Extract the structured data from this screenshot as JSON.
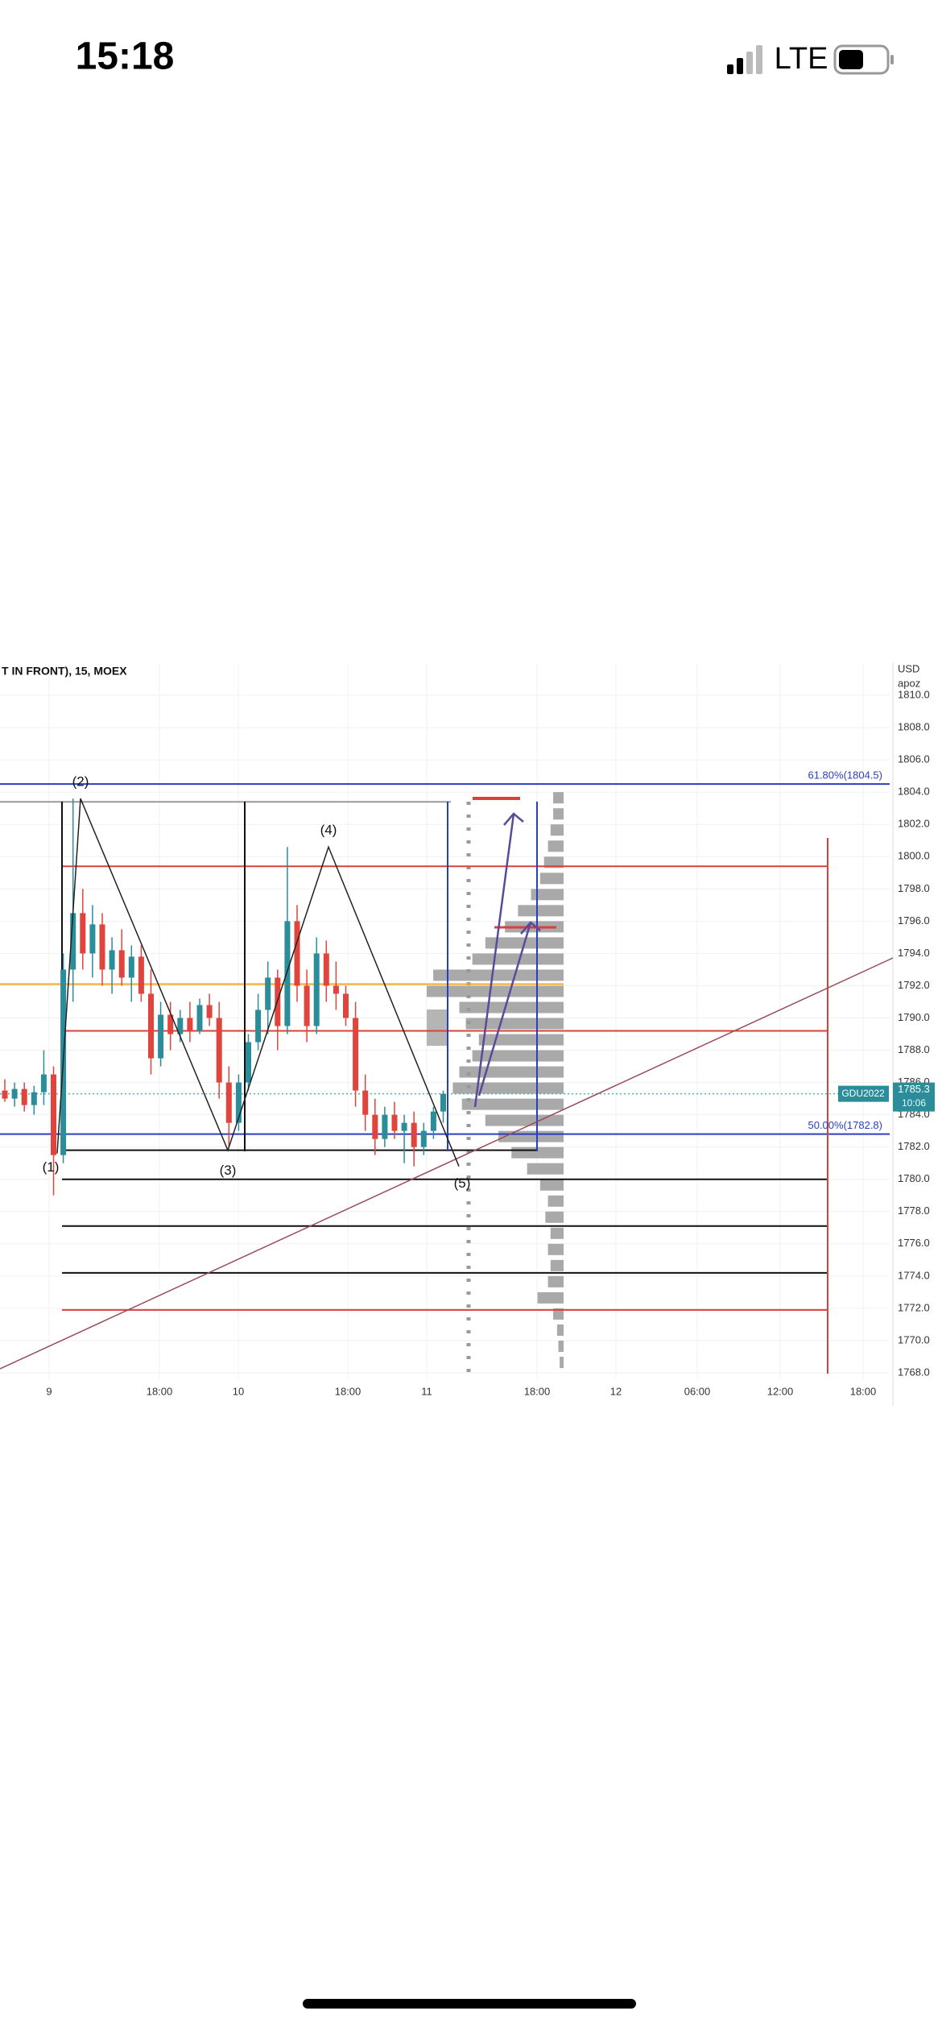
{
  "status_bar": {
    "time": "15:18",
    "network": "LTE"
  },
  "chart_data": {
    "type": "candlestick",
    "title": "T IN FRONT), 15, MOEX",
    "currency": "USD",
    "unit": "apoz",
    "x_labels": [
      "9",
      "18:00",
      "10",
      "18:00",
      "11",
      "18:00",
      "12",
      "06:00",
      "12:00",
      "18:00"
    ],
    "ylim": [
      1767.6,
      1812.0
    ],
    "yticks": [
      {
        "value": 1768,
        "label": "1768.0"
      },
      {
        "value": 1770,
        "label": "1770.0"
      },
      {
        "value": 1772,
        "label": "1772.0"
      },
      {
        "value": 1774,
        "label": "1774.0"
      },
      {
        "value": 1776,
        "label": "1776.0"
      },
      {
        "value": 1778,
        "label": "1778.0"
      },
      {
        "value": 1780,
        "label": "1780.0"
      },
      {
        "value": 1782,
        "label": "1782.0"
      },
      {
        "value": 1784,
        "label": "1784.0"
      },
      {
        "value": 1786,
        "label": "1786.0"
      },
      {
        "value": 1788,
        "label": "1788.0"
      },
      {
        "value": 1790,
        "label": "1790.0"
      },
      {
        "value": 1792,
        "label": "1792.0"
      },
      {
        "value": 1794,
        "label": "1794.0"
      },
      {
        "value": 1796,
        "label": "1796.0"
      },
      {
        "value": 1798,
        "label": "1798.0"
      },
      {
        "value": 1800,
        "label": "1800.0"
      },
      {
        "value": 1802,
        "label": "1802.0"
      },
      {
        "value": 1804,
        "label": "1804.0"
      },
      {
        "value": 1806,
        "label": "1806.0"
      },
      {
        "value": 1808,
        "label": "1808.0"
      },
      {
        "value": 1810,
        "label": "1810.0"
      }
    ],
    "grid": true,
    "up_color": "#2b8c9a",
    "down_color": "#e0443c",
    "ohlc": [
      [
        1785.5,
        1786.2,
        1784.8,
        1785.0
      ],
      [
        1785.0,
        1786.0,
        1784.5,
        1785.6
      ],
      [
        1785.6,
        1786.0,
        1784.2,
        1784.6
      ],
      [
        1784.6,
        1785.8,
        1784.0,
        1785.4
      ],
      [
        1785.4,
        1788.0,
        1784.6,
        1786.5
      ],
      [
        1786.5,
        1787.0,
        1779.0,
        1781.5
      ],
      [
        1781.5,
        1794.0,
        1781.0,
        1793.0
      ],
      [
        1793.0,
        1803.6,
        1791.0,
        1796.5
      ],
      [
        1796.5,
        1798.0,
        1793.0,
        1794.0
      ],
      [
        1794.0,
        1797.0,
        1792.5,
        1795.8
      ],
      [
        1795.8,
        1796.5,
        1792.0,
        1793.0
      ],
      [
        1793.0,
        1795.0,
        1791.5,
        1794.2
      ],
      [
        1794.2,
        1795.5,
        1792.0,
        1792.5
      ],
      [
        1792.5,
        1794.5,
        1791.0,
        1793.8
      ],
      [
        1793.8,
        1794.5,
        1791.0,
        1791.5
      ],
      [
        1791.5,
        1793.0,
        1786.5,
        1787.5
      ],
      [
        1787.5,
        1791.0,
        1787.0,
        1790.2
      ],
      [
        1790.2,
        1791.0,
        1788.0,
        1789.0
      ],
      [
        1789.0,
        1790.5,
        1788.5,
        1790.0
      ],
      [
        1790.0,
        1791.0,
        1788.5,
        1789.2
      ],
      [
        1789.2,
        1791.2,
        1789.0,
        1790.8
      ],
      [
        1790.8,
        1791.5,
        1789.5,
        1790.0
      ],
      [
        1790.0,
        1791.0,
        1785.0,
        1786.0
      ],
      [
        1786.0,
        1787.0,
        1782.0,
        1783.5
      ],
      [
        1783.5,
        1786.5,
        1783.0,
        1786.0
      ],
      [
        1786.0,
        1789.0,
        1785.5,
        1788.5
      ],
      [
        1788.5,
        1791.5,
        1788.0,
        1790.5
      ],
      [
        1790.5,
        1793.5,
        1789.0,
        1792.5
      ],
      [
        1792.5,
        1793.0,
        1788.0,
        1789.5
      ],
      [
        1789.5,
        1800.6,
        1789.0,
        1796.0
      ],
      [
        1796.0,
        1797.0,
        1791.0,
        1792.0
      ],
      [
        1792.0,
        1793.0,
        1788.5,
        1789.5
      ],
      [
        1789.5,
        1795.0,
        1789.0,
        1794.0
      ],
      [
        1794.0,
        1794.8,
        1791.0,
        1792.0
      ],
      [
        1792.0,
        1793.5,
        1790.5,
        1791.5
      ],
      [
        1791.5,
        1792.0,
        1789.5,
        1790.0
      ],
      [
        1790.0,
        1791.0,
        1784.5,
        1785.5
      ],
      [
        1785.5,
        1786.5,
        1783.0,
        1784.0
      ],
      [
        1784.0,
        1785.0,
        1781.5,
        1782.5
      ],
      [
        1782.5,
        1784.5,
        1782.0,
        1784.0
      ],
      [
        1784.0,
        1784.8,
        1782.5,
        1783.0
      ],
      [
        1783.0,
        1784.0,
        1781.0,
        1783.5
      ],
      [
        1783.5,
        1784.2,
        1780.8,
        1782.0
      ],
      [
        1782.0,
        1783.5,
        1781.5,
        1783.0
      ],
      [
        1783.0,
        1784.5,
        1782.5,
        1784.2
      ],
      [
        1784.2,
        1785.5,
        1783.5,
        1785.3
      ]
    ],
    "volume_profile": {
      "color": "#a9a9a9",
      "prices": [
        1768,
        1769,
        1770,
        1771,
        1772,
        1773,
        1774,
        1775,
        1776,
        1777,
        1778,
        1779,
        1780,
        1781,
        1782,
        1783,
        1784,
        1785,
        1786,
        1787,
        1788,
        1789,
        1790,
        1791,
        1792,
        1793,
        1794,
        1795,
        1796,
        1797,
        1798,
        1799,
        1800,
        1801,
        1802,
        1803
      ],
      "values": [
        3,
        4,
        5,
        8,
        20,
        12,
        10,
        12,
        10,
        14,
        12,
        18,
        28,
        40,
        50,
        60,
        78,
        85,
        80,
        70,
        65,
        75,
        80,
        105,
        100,
        70,
        60,
        45,
        35,
        25,
        18,
        15,
        12,
        10,
        8,
        8
      ]
    },
    "levels": [
      {
        "price": 1804.5,
        "color": "#2a3fbf"
      },
      {
        "price": 1782.8,
        "color": "#2a3fbf"
      },
      {
        "price": 1799.4,
        "color": "#d9413a"
      },
      {
        "price": 1792.1,
        "color": "#f5a623"
      },
      {
        "price": 1789.2,
        "color": "#d9413a"
      },
      {
        "price": 1785.3,
        "color": "#4fb0b8"
      },
      {
        "price": 1781.8,
        "color": "#111111"
      },
      {
        "price": 1780.0,
        "color": "#111111"
      },
      {
        "price": 1777.1,
        "color": "#111111"
      },
      {
        "price": 1774.2,
        "color": "#111111"
      },
      {
        "price": 1771.9,
        "color": "#d9413a"
      },
      {
        "price": 1803.4,
        "color": "#999999"
      }
    ],
    "fib_labels": [
      "61.80%(1804.5)",
      "50.00%(1782.8)"
    ],
    "wave": {
      "labels": [
        "(1)",
        "(2)",
        "(3)",
        "(4)",
        "(5)"
      ],
      "prices": [
        1781.6,
        1803.6,
        1781.8,
        1800.6,
        1780.8
      ]
    },
    "last": {
      "symbol": "GDU2022",
      "price": 1785.3,
      "timer": "10:06"
    }
  }
}
